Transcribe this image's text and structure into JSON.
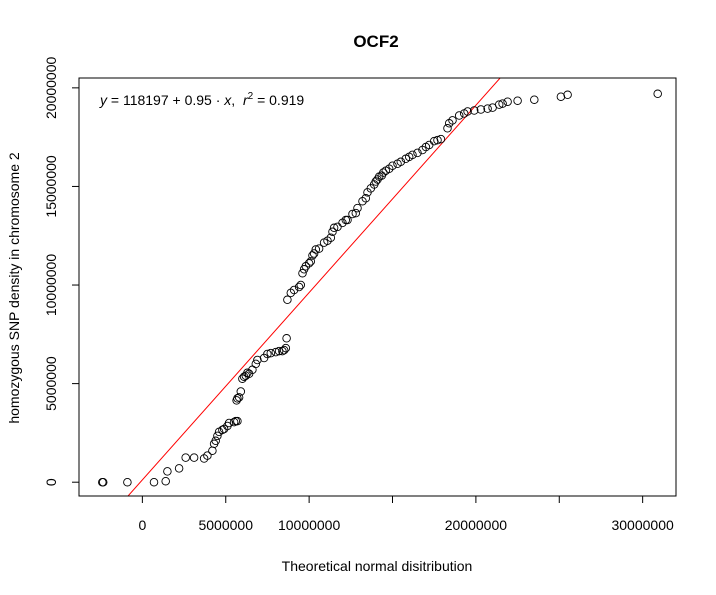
{
  "chart_data": {
    "type": "scatter",
    "title": "OCF2",
    "xlabel": "Theoretical normal disitribution",
    "ylabel": "homozygous SNP density in chromosome 2",
    "xlim": [
      -3800000,
      32000000
    ],
    "ylim": [
      -700000,
      20500000
    ],
    "x_ticks": [
      0,
      5000000,
      10000000,
      15000000,
      20000000,
      25000000,
      30000000
    ],
    "x_tick_labels": [
      "0",
      "5000000",
      "10000000",
      "",
      "20000000",
      "",
      "30000000"
    ],
    "y_ticks": [
      0,
      5000000,
      10000000,
      15000000,
      20000000
    ],
    "y_tick_labels": [
      "0",
      "5000000",
      "10000000",
      "15000000",
      "20000000"
    ],
    "grid": false,
    "annotation": {
      "y_var": "y",
      "eq_mid": " = 118197 + 0.95 · ",
      "x_var": "x",
      "sep": ",  ",
      "r_var": "r",
      "r_exp": "2",
      "r_val": " = 0.919"
    },
    "fit_line": {
      "intercept": 118197,
      "slope": 0.95,
      "color": "#ff0000"
    },
    "marker_color": "#000000",
    "points": [
      [
        -2400000,
        0
      ],
      [
        -2350000,
        0
      ],
      [
        -900000,
        0
      ],
      [
        700000,
        0
      ],
      [
        1400000,
        50000
      ],
      [
        1500000,
        550000
      ],
      [
        2200000,
        700000
      ],
      [
        2600000,
        1250000
      ],
      [
        3100000,
        1250000
      ],
      [
        3700000,
        1200000
      ],
      [
        3900000,
        1350000
      ],
      [
        4200000,
        1600000
      ],
      [
        4300000,
        1950000
      ],
      [
        4400000,
        2100000
      ],
      [
        4500000,
        2350000
      ],
      [
        4600000,
        2550000
      ],
      [
        4800000,
        2650000
      ],
      [
        4900000,
        2700000
      ],
      [
        5100000,
        2850000
      ],
      [
        5200000,
        3000000
      ],
      [
        5500000,
        3050000
      ],
      [
        5600000,
        3100000
      ],
      [
        5700000,
        3100000
      ],
      [
        5650000,
        4150000
      ],
      [
        5700000,
        4250000
      ],
      [
        5800000,
        4300000
      ],
      [
        5900000,
        4600000
      ],
      [
        6000000,
        5250000
      ],
      [
        6100000,
        5350000
      ],
      [
        6200000,
        5400000
      ],
      [
        6300000,
        5550000
      ],
      [
        6400000,
        5500000
      ],
      [
        6600000,
        5700000
      ],
      [
        6800000,
        6000000
      ],
      [
        6900000,
        6200000
      ],
      [
        7300000,
        6300000
      ],
      [
        7500000,
        6500000
      ],
      [
        7700000,
        6550000
      ],
      [
        8000000,
        6600000
      ],
      [
        8200000,
        6650000
      ],
      [
        8400000,
        6650000
      ],
      [
        8500000,
        6700000
      ],
      [
        8600000,
        6800000
      ],
      [
        8650000,
        7300000
      ],
      [
        8700000,
        9250000
      ],
      [
        8900000,
        9600000
      ],
      [
        9100000,
        9750000
      ],
      [
        9400000,
        9900000
      ],
      [
        9500000,
        10000000
      ],
      [
        9600000,
        10600000
      ],
      [
        9700000,
        10800000
      ],
      [
        9800000,
        10950000
      ],
      [
        10000000,
        11100000
      ],
      [
        10100000,
        11200000
      ],
      [
        10200000,
        11500000
      ],
      [
        10300000,
        11600000
      ],
      [
        10400000,
        11800000
      ],
      [
        10600000,
        11850000
      ],
      [
        10900000,
        12150000
      ],
      [
        11100000,
        12250000
      ],
      [
        11300000,
        12400000
      ],
      [
        11400000,
        12700000
      ],
      [
        11500000,
        12900000
      ],
      [
        11700000,
        12950000
      ],
      [
        12000000,
        13150000
      ],
      [
        12200000,
        13300000
      ],
      [
        12300000,
        13300000
      ],
      [
        12600000,
        13600000
      ],
      [
        12800000,
        13650000
      ],
      [
        12900000,
        13900000
      ],
      [
        13200000,
        14250000
      ],
      [
        13400000,
        14400000
      ],
      [
        13500000,
        14700000
      ],
      [
        13700000,
        14900000
      ],
      [
        13900000,
        15100000
      ],
      [
        14000000,
        15250000
      ],
      [
        14100000,
        15350000
      ],
      [
        14200000,
        15500000
      ],
      [
        14350000,
        15550000
      ],
      [
        14450000,
        15700000
      ],
      [
        14600000,
        15800000
      ],
      [
        14800000,
        15900000
      ],
      [
        15000000,
        16050000
      ],
      [
        15300000,
        16150000
      ],
      [
        15500000,
        16250000
      ],
      [
        15800000,
        16400000
      ],
      [
        16000000,
        16500000
      ],
      [
        16200000,
        16600000
      ],
      [
        16500000,
        16700000
      ],
      [
        16800000,
        16850000
      ],
      [
        17000000,
        17000000
      ],
      [
        17200000,
        17100000
      ],
      [
        17500000,
        17300000
      ],
      [
        17700000,
        17350000
      ],
      [
        17900000,
        17400000
      ],
      [
        18300000,
        17950000
      ],
      [
        18400000,
        18200000
      ],
      [
        18600000,
        18350000
      ],
      [
        19000000,
        18600000
      ],
      [
        19300000,
        18700000
      ],
      [
        19500000,
        18800000
      ],
      [
        19900000,
        18850000
      ],
      [
        20300000,
        18900000
      ],
      [
        20700000,
        18950000
      ],
      [
        21000000,
        19000000
      ],
      [
        21400000,
        19150000
      ],
      [
        21600000,
        19200000
      ],
      [
        21900000,
        19300000
      ],
      [
        22500000,
        19350000
      ],
      [
        23500000,
        19400000
      ],
      [
        25100000,
        19550000
      ],
      [
        25500000,
        19650000
      ],
      [
        30900000,
        19700000
      ]
    ]
  }
}
